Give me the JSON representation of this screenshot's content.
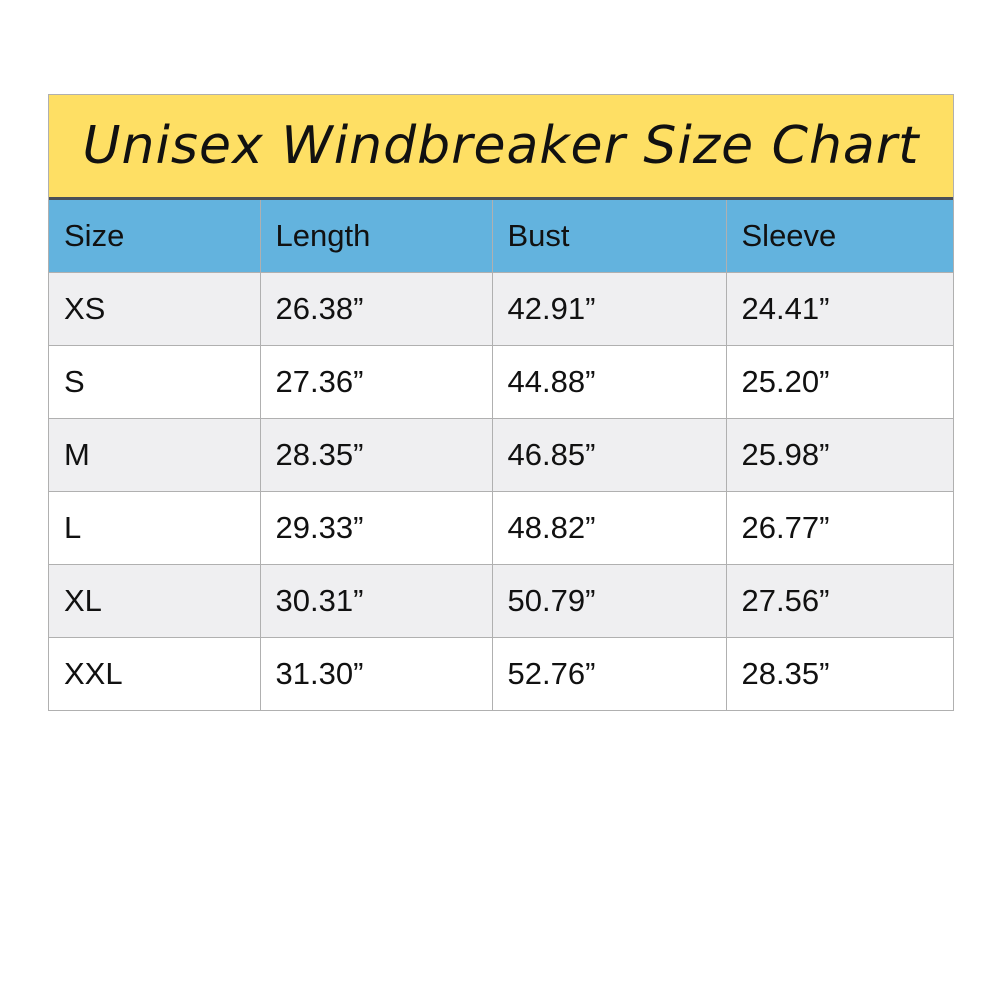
{
  "title": "Unisex Windbreaker Size Chart",
  "colors": {
    "title_bg": "#fedf64",
    "header_bg": "#63b3de",
    "row_alt": "#efeff1"
  },
  "headers": [
    "Size",
    "Length",
    "Bust",
    "Sleeve"
  ],
  "rows": [
    [
      "XS",
      "26.38”",
      "42.91”",
      "24.41”"
    ],
    [
      "S",
      "27.36”",
      "44.88”",
      "25.20”"
    ],
    [
      "M",
      "28.35”",
      "46.85”",
      "25.98”"
    ],
    [
      "L",
      "29.33”",
      "48.82”",
      "26.77”"
    ],
    [
      "XL",
      "30.31”",
      "50.79”",
      "27.56”"
    ],
    [
      "XXL",
      "31.30”",
      "52.76”",
      "28.35”"
    ]
  ]
}
